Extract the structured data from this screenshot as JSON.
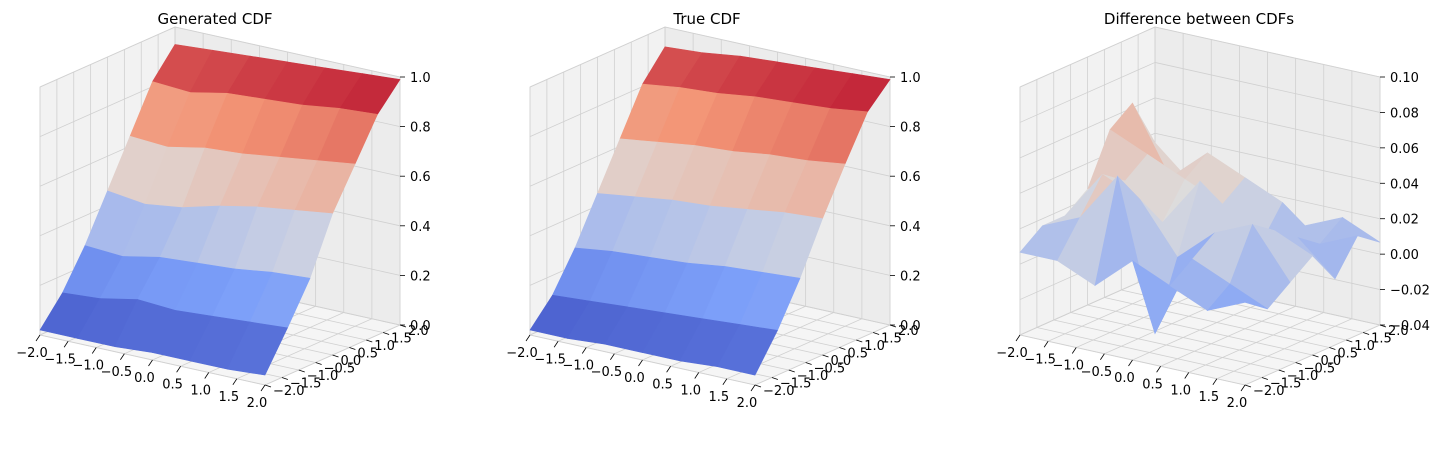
{
  "chart_data": [
    {
      "type": "surface3d",
      "title": "Generated CDF",
      "colormap": "coolwarm",
      "x_ticks": [
        "−2.0",
        "−1.5",
        "−1.0",
        "−0.5",
        "0.0",
        "0.5",
        "1.0",
        "1.5",
        "2.0"
      ],
      "y_ticks": [
        "−2.0",
        "−1.5",
        "−1.0",
        "−0.5",
        "0.0",
        "0.5",
        "1.0",
        "1.5",
        "2.0"
      ],
      "z_ticks": [
        "0.0",
        "0.2",
        "0.4",
        "0.6",
        "0.8",
        "1.0"
      ],
      "x_range": [
        -2,
        2
      ],
      "y_range": [
        -2,
        2
      ],
      "z_range": [
        0,
        1
      ],
      "grid": true,
      "surface": [
        [
          0.02,
          0.13,
          0.28,
          0.46,
          0.64,
          0.82,
          0.93
        ],
        [
          0.02,
          0.14,
          0.27,
          0.44,
          0.63,
          0.81,
          0.94
        ],
        [
          0.02,
          0.17,
          0.3,
          0.46,
          0.66,
          0.84,
          0.95
        ],
        [
          0.03,
          0.16,
          0.31,
          0.5,
          0.67,
          0.85,
          0.96
        ],
        [
          0.03,
          0.17,
          0.32,
          0.53,
          0.69,
          0.86,
          0.97
        ],
        [
          0.03,
          0.18,
          0.34,
          0.55,
          0.71,
          0.88,
          0.98
        ],
        [
          0.04,
          0.19,
          0.35,
          0.57,
          0.73,
          0.89,
          0.99
        ]
      ]
    },
    {
      "type": "surface3d",
      "title": "True CDF",
      "colormap": "coolwarm",
      "x_ticks": [
        "−2.0",
        "−1.5",
        "−1.0",
        "−0.5",
        "0.0",
        "0.5",
        "1.0",
        "1.5",
        "2.0"
      ],
      "y_ticks": [
        "−2.0",
        "−1.5",
        "−1.0",
        "−0.5",
        "0.0",
        "0.5",
        "1.0",
        "1.5",
        "2.0"
      ],
      "z_ticks": [
        "0.0",
        "0.2",
        "0.4",
        "0.6",
        "0.8",
        "1.0"
      ],
      "x_range": [
        -2,
        2
      ],
      "y_range": [
        -2,
        2
      ],
      "z_range": [
        0,
        1
      ],
      "grid": true,
      "surface": [
        [
          0.02,
          0.12,
          0.27,
          0.45,
          0.63,
          0.81,
          0.92
        ],
        [
          0.02,
          0.13,
          0.29,
          0.47,
          0.65,
          0.83,
          0.93
        ],
        [
          0.03,
          0.14,
          0.3,
          0.49,
          0.67,
          0.84,
          0.95
        ],
        [
          0.03,
          0.15,
          0.31,
          0.5,
          0.68,
          0.86,
          0.96
        ],
        [
          0.03,
          0.16,
          0.33,
          0.52,
          0.7,
          0.87,
          0.97
        ],
        [
          0.04,
          0.17,
          0.34,
          0.54,
          0.71,
          0.88,
          0.98
        ],
        [
          0.04,
          0.18,
          0.35,
          0.55,
          0.73,
          0.9,
          0.99
        ]
      ]
    },
    {
      "type": "surface3d",
      "title": "Difference between CDFs",
      "colormap": "coolwarm",
      "x_ticks": [
        "−2.0",
        "−1.5",
        "−1.0",
        "−0.5",
        "0.0",
        "0.5",
        "1.0",
        "1.5",
        "2.0"
      ],
      "y_ticks": [
        "−2.0",
        "−1.5",
        "−1.0",
        "−0.5",
        "0.0",
        "0.5",
        "1.0",
        "1.5",
        "2.0"
      ],
      "z_ticks": [
        "−0.04",
        "−0.02",
        "0.00",
        "0.02",
        "0.04",
        "0.06",
        "0.08",
        "0.10"
      ],
      "x_range": [
        -2,
        2
      ],
      "y_range": [
        -2,
        2
      ],
      "z_range": [
        -0.05,
        0.1
      ],
      "grid": true,
      "surface": [
        [
          0.0,
          0.01,
          0.01,
          0.02,
          0.05,
          0.06,
          0.03
        ],
        [
          0.0,
          0.02,
          0.04,
          0.03,
          0.04,
          0.02,
          0.01
        ],
        [
          -0.01,
          0.05,
          0.03,
          0.01,
          0.03,
          0.04,
          0.02
        ],
        [
          0.01,
          -0.04,
          0.0,
          0.04,
          0.02,
          0.03,
          0.01
        ],
        [
          0.0,
          0.01,
          0.02,
          0.01,
          0.0,
          0.02,
          0.0
        ],
        [
          -0.01,
          0.0,
          0.03,
          0.02,
          0.01,
          0.0,
          0.01
        ],
        [
          0.0,
          -0.01,
          0.0,
          0.01,
          -0.01,
          0.01,
          0.0
        ]
      ]
    }
  ]
}
